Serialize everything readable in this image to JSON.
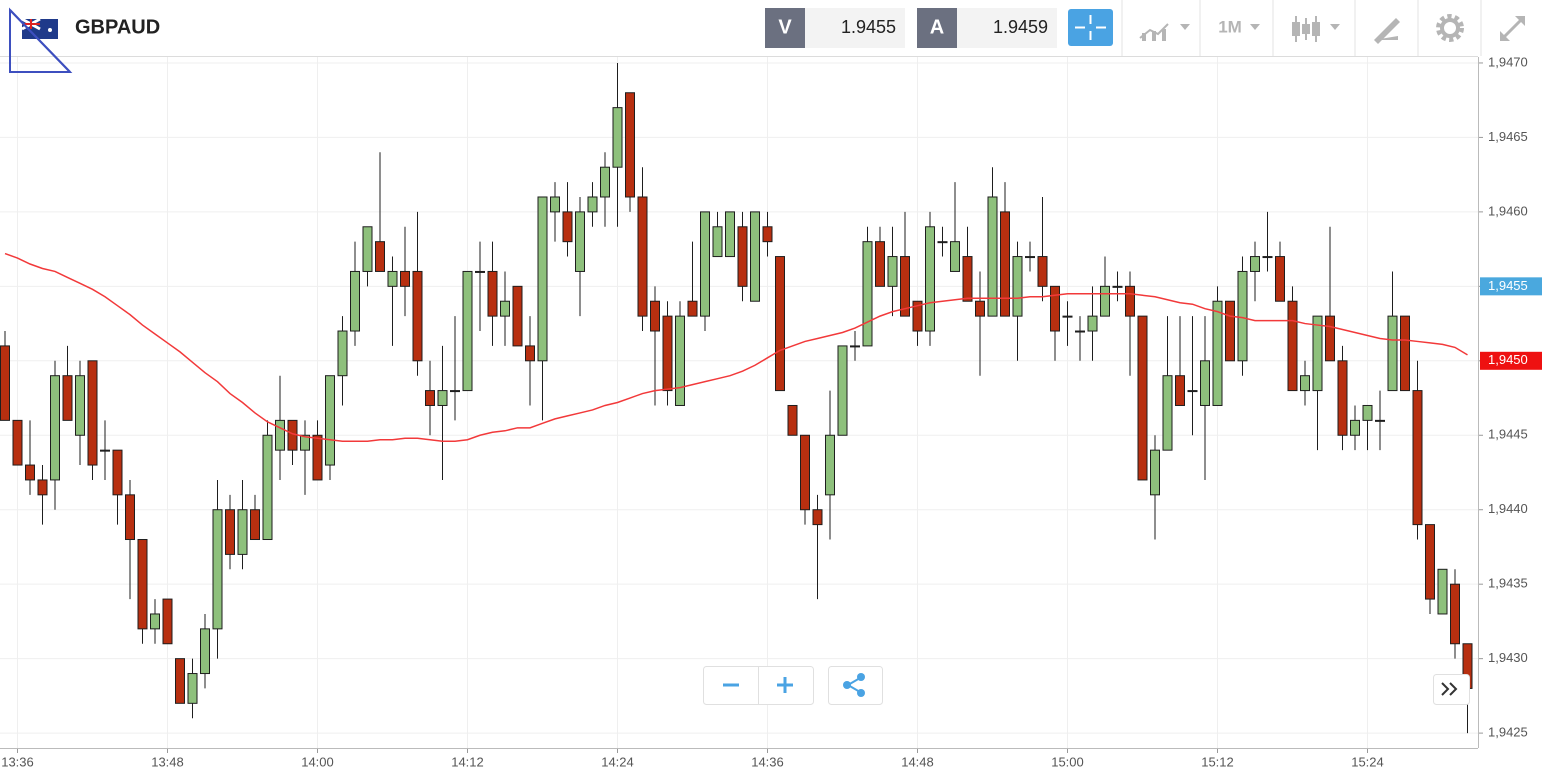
{
  "toolbar": {
    "symbol": "GBPAUD",
    "sell_label": "V",
    "sell_price": "1.9455",
    "buy_label": "A",
    "buy_price": "1.9459",
    "timeframe": "1M"
  },
  "chart_data": {
    "type": "candlestick",
    "categories": [
      null,
      "13:36",
      null,
      null,
      null,
      null,
      null,
      null,
      null,
      null,
      null,
      null,
      null,
      "13:48",
      null,
      null,
      null,
      null,
      null,
      null,
      null,
      null,
      null,
      null,
      null,
      "14:00",
      null,
      null,
      null,
      null,
      null,
      null,
      null,
      null,
      null,
      null,
      null,
      "14:12",
      null,
      null,
      null,
      null,
      null,
      null,
      null,
      null,
      null,
      null,
      null,
      "14:24",
      null,
      null,
      null,
      null,
      null,
      null,
      null,
      null,
      null,
      null,
      null,
      "14:36",
      null,
      null,
      null,
      null,
      null,
      null,
      null,
      null,
      null,
      null,
      null,
      "14:48",
      null,
      null,
      null,
      null,
      null,
      null,
      null,
      null,
      null,
      null,
      null,
      "15:00",
      null,
      null,
      null,
      null,
      null,
      null,
      null,
      null,
      null,
      null,
      null,
      "15:12",
      null,
      null,
      null,
      null,
      null,
      null,
      null,
      null,
      null,
      null,
      null,
      "15:24",
      null,
      null,
      null,
      null,
      null,
      null,
      null,
      null
    ],
    "open": [
      1.9451,
      1.9446,
      1.9443,
      1.9442,
      1.9442,
      1.9449,
      1.9445,
      1.945,
      1.9444,
      1.9444,
      1.9441,
      1.9438,
      1.9432,
      1.9434,
      1.943,
      1.9427,
      1.9429,
      1.9432,
      1.944,
      1.9437,
      1.944,
      1.9438,
      1.9444,
      1.9446,
      1.9444,
      1.9445,
      1.9443,
      1.9449,
      1.9452,
      1.9456,
      1.9458,
      1.9455,
      1.9456,
      1.9456,
      1.9448,
      1.9447,
      1.9448,
      1.9448,
      1.9456,
      1.9456,
      1.9453,
      1.9455,
      1.9451,
      1.945,
      1.946,
      1.946,
      1.9456,
      1.946,
      1.9461,
      1.9463,
      1.9468,
      1.9461,
      1.9454,
      1.9453,
      1.9447,
      1.9454,
      1.9453,
      1.9457,
      1.9457,
      1.9459,
      1.9454,
      1.9459,
      1.9457,
      1.9447,
      1.9445,
      1.944,
      1.9441,
      1.9445,
      1.9451,
      1.9451,
      1.9458,
      1.9455,
      1.9457,
      1.9454,
      1.9452,
      1.9458,
      1.9456,
      1.9457,
      1.9454,
      1.9453,
      1.946,
      1.9453,
      1.9457,
      1.9457,
      1.9455,
      1.9453,
      1.9452,
      1.9452,
      1.9453,
      1.9455,
      1.9455,
      1.9453,
      1.9441,
      1.9444,
      1.9449,
      1.9448,
      1.9447,
      1.9447,
      1.9454,
      1.945,
      1.9456,
      1.9457,
      1.9457,
      1.9454,
      1.9448,
      1.9448,
      1.9453,
      1.945,
      1.9445,
      1.9446,
      1.9446,
      1.9448,
      1.9453,
      1.9448,
      1.9439,
      1.9433,
      1.9435,
      1.9431
    ],
    "high": [
      1.9452,
      1.9446,
      1.9446,
      1.9443,
      1.945,
      1.9451,
      1.945,
      1.945,
      1.9446,
      1.9444,
      1.9442,
      1.9438,
      1.9434,
      1.9434,
      1.943,
      1.943,
      1.9433,
      1.9442,
      1.9441,
      1.9442,
      1.9441,
      1.9446,
      1.9449,
      1.9446,
      1.9446,
      1.9446,
      1.9449,
      1.9453,
      1.9458,
      1.9459,
      1.9464,
      1.9457,
      1.9459,
      1.946,
      1.945,
      1.9451,
      1.9453,
      1.9456,
      1.9458,
      1.9458,
      1.9456,
      1.9455,
      1.9453,
      1.9461,
      1.9462,
      1.9462,
      1.9461,
      1.9462,
      1.9464,
      1.947,
      1.9468,
      1.9463,
      1.9455,
      1.9454,
      1.9454,
      1.9458,
      1.946,
      1.946,
      1.946,
      1.946,
      1.946,
      1.946,
      1.9457,
      1.9447,
      1.9445,
      1.9441,
      1.9448,
      1.9451,
      1.9452,
      1.9459,
      1.9459,
      1.9459,
      1.946,
      1.9454,
      1.946,
      1.9459,
      1.9462,
      1.9459,
      1.9456,
      1.9463,
      1.9462,
      1.9458,
      1.9458,
      1.9461,
      1.9455,
      1.9454,
      1.9453,
      1.9455,
      1.9457,
      1.9456,
      1.9456,
      1.9453,
      1.9445,
      1.9453,
      1.9453,
      1.9453,
      1.9453,
      1.9455,
      1.9454,
      1.9457,
      1.9458,
      1.946,
      1.9458,
      1.9455,
      1.945,
      1.9453,
      1.9459,
      1.9451,
      1.9447,
      1.9447,
      1.9448,
      1.9456,
      1.9453,
      1.945,
      1.9439,
      1.9436,
      1.9436,
      1.9431
    ],
    "low": [
      1.9446,
      1.9443,
      1.9441,
      1.9439,
      1.944,
      1.9446,
      1.9443,
      1.9442,
      1.9442,
      1.9439,
      1.9434,
      1.9431,
      1.9431,
      1.9431,
      1.9427,
      1.9426,
      1.9428,
      1.943,
      1.9436,
      1.9436,
      1.9438,
      1.9438,
      1.9442,
      1.9443,
      1.9441,
      1.9442,
      1.9442,
      1.9447,
      1.9451,
      1.9455,
      1.9456,
      1.9451,
      1.9453,
      1.9449,
      1.9445,
      1.9442,
      1.9446,
      1.9448,
      1.9452,
      1.9451,
      1.9451,
      1.9451,
      1.9447,
      1.9446,
      1.9458,
      1.9457,
      1.9453,
      1.9459,
      1.9459,
      1.9459,
      1.946,
      1.9452,
      1.9447,
      1.9447,
      1.9447,
      1.9453,
      1.9452,
      1.9457,
      1.9457,
      1.9454,
      1.9454,
      1.9457,
      1.9448,
      1.9445,
      1.9439,
      1.9434,
      1.9438,
      1.9445,
      1.945,
      1.9451,
      1.9455,
      1.9453,
      1.9453,
      1.9451,
      1.9451,
      1.9457,
      1.9456,
      1.9454,
      1.9449,
      1.9453,
      1.9453,
      1.945,
      1.9456,
      1.9454,
      1.945,
      1.9451,
      1.945,
      1.945,
      1.9453,
      1.9454,
      1.9449,
      1.9442,
      1.9438,
      1.9444,
      1.9447,
      1.9445,
      1.9442,
      1.9447,
      1.945,
      1.9449,
      1.9454,
      1.9456,
      1.9454,
      1.9448,
      1.9447,
      1.9444,
      1.945,
      1.9444,
      1.9444,
      1.9444,
      1.9444,
      1.9448,
      1.9448,
      1.9438,
      1.9433,
      1.9433,
      1.943,
      1.9425
    ],
    "close": [
      1.9446,
      1.9443,
      1.9442,
      1.9441,
      1.9449,
      1.9446,
      1.9449,
      1.9443,
      1.9444,
      1.9441,
      1.9438,
      1.9432,
      1.9433,
      1.9431,
      1.9427,
      1.9429,
      1.9432,
      1.944,
      1.9437,
      1.944,
      1.9438,
      1.9445,
      1.9446,
      1.9444,
      1.9445,
      1.9442,
      1.9449,
      1.9452,
      1.9456,
      1.9459,
      1.9456,
      1.9456,
      1.9455,
      1.945,
      1.9447,
      1.9448,
      1.9448,
      1.9456,
      1.9456,
      1.9453,
      1.9454,
      1.9451,
      1.945,
      1.9461,
      1.9461,
      1.9458,
      1.946,
      1.9461,
      1.9463,
      1.9467,
      1.9461,
      1.9453,
      1.9452,
      1.9448,
      1.9453,
      1.9453,
      1.946,
      1.9459,
      1.946,
      1.9455,
      1.946,
      1.9458,
      1.9448,
      1.9445,
      1.944,
      1.9439,
      1.9445,
      1.9451,
      1.9451,
      1.9458,
      1.9455,
      1.9457,
      1.9453,
      1.9452,
      1.9459,
      1.9458,
      1.9458,
      1.9454,
      1.9453,
      1.9461,
      1.9453,
      1.9457,
      1.9457,
      1.9455,
      1.9452,
      1.9453,
      1.9452,
      1.9453,
      1.9455,
      1.9455,
      1.9453,
      1.9442,
      1.9444,
      1.9449,
      1.9447,
      1.9448,
      1.945,
      1.9454,
      1.945,
      1.9456,
      1.9457,
      1.9457,
      1.9454,
      1.9448,
      1.9449,
      1.9453,
      1.945,
      1.9445,
      1.9446,
      1.9447,
      1.9446,
      1.9453,
      1.9448,
      1.9439,
      1.9434,
      1.9436,
      1.9431,
      1.9428
    ],
    "up_color": "#8ec07c",
    "down_color": "#b72f10",
    "edge_color": "#1e1e1e",
    "moving_average": {
      "color": "#f2393a",
      "values": [
        1.94572,
        1.94569,
        1.94565,
        1.94562,
        1.9456,
        1.94556,
        1.94552,
        1.94548,
        1.94543,
        1.94537,
        1.94531,
        1.94524,
        1.94518,
        1.94512,
        1.94506,
        1.94499,
        1.94492,
        1.94486,
        1.94478,
        1.94472,
        1.94465,
        1.94459,
        1.94455,
        1.94451,
        1.94449,
        1.94448,
        1.94447,
        1.94446,
        1.94446,
        1.94446,
        1.94447,
        1.94447,
        1.94448,
        1.94448,
        1.94447,
        1.94446,
        1.94446,
        1.94447,
        1.9445,
        1.94452,
        1.94453,
        1.94455,
        1.94455,
        1.94458,
        1.94461,
        1.94463,
        1.94465,
        1.94467,
        1.9447,
        1.94472,
        1.94475,
        1.94478,
        1.9448,
        1.94481,
        1.94482,
        1.94484,
        1.94486,
        1.94488,
        1.9449,
        1.94493,
        1.94497,
        1.94502,
        1.94507,
        1.9451,
        1.94513,
        1.94515,
        1.94517,
        1.94519,
        1.94522,
        1.94526,
        1.9453,
        1.94533,
        1.94535,
        1.94537,
        1.94539,
        1.9454,
        1.94541,
        1.94542,
        1.94542,
        1.94542,
        1.94542,
        1.94542,
        1.94543,
        1.94543,
        1.94544,
        1.94545,
        1.94545,
        1.94545,
        1.94545,
        1.94545,
        1.94545,
        1.94544,
        1.94543,
        1.94541,
        1.94539,
        1.94538,
        1.94535,
        1.94533,
        1.9453,
        1.94529,
        1.94527,
        1.94527,
        1.94527,
        1.94527,
        1.94525,
        1.94524,
        1.94523,
        1.94521,
        1.94519,
        1.94517,
        1.94515,
        1.94514,
        1.94514,
        1.94513,
        1.94512,
        1.94511,
        1.94509,
        1.94504
      ]
    },
    "ylim": [
      1.9424,
      1.94704
    ],
    "yticks": [
      {
        "value": 1.9425,
        "label": "1,9425"
      },
      {
        "value": 1.943,
        "label": "1,9430"
      },
      {
        "value": 1.9435,
        "label": "1,9435"
      },
      {
        "value": 1.944,
        "label": "1,9440"
      },
      {
        "value": 1.9445,
        "label": "1,9445"
      },
      {
        "value": 1.945,
        "label": "1,9450"
      },
      {
        "value": 1.9455,
        "label": "1,9455"
      },
      {
        "value": 1.946,
        "label": "1,9460"
      },
      {
        "value": 1.9465,
        "label": "1,9465"
      },
      {
        "value": 1.947,
        "label": "1,9470"
      }
    ],
    "price_markers": [
      {
        "value": 1.9455,
        "label": "1,9455",
        "color": "#4aa8de"
      },
      {
        "value": 1.945,
        "label": "1,9450",
        "color": "#ee1111"
      }
    ],
    "grid": true
  }
}
